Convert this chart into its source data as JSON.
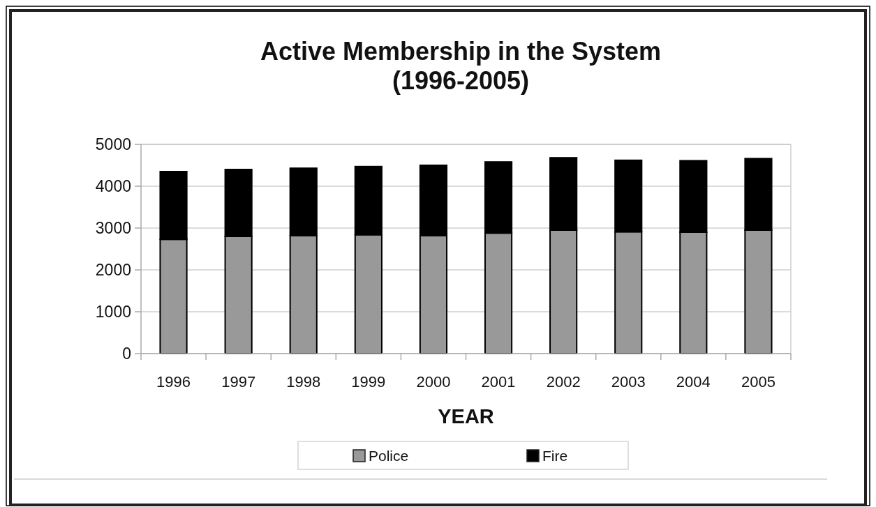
{
  "chart_data": {
    "type": "bar",
    "title": "Active Membership in the System\n(1996-2005)",
    "xlabel": "YEAR",
    "categories": [
      "1996",
      "1997",
      "1998",
      "1999",
      "2000",
      "2001",
      "2002",
      "2003",
      "2004",
      "2005"
    ],
    "series": [
      {
        "name": "Police",
        "color": "#999999",
        "values": [
          2730,
          2800,
          2820,
          2840,
          2820,
          2880,
          2950,
          2910,
          2900,
          2950
        ]
      },
      {
        "name": "Fire",
        "color": "#000000",
        "values": [
          1620,
          1600,
          1610,
          1630,
          1680,
          1700,
          1730,
          1710,
          1710,
          1710
        ]
      }
    ],
    "stacked": true,
    "ylim": [
      0,
      5000
    ],
    "yticks": [
      0,
      1000,
      2000,
      3000,
      4000,
      5000
    ],
    "grid": "y",
    "legend": "bottom"
  }
}
